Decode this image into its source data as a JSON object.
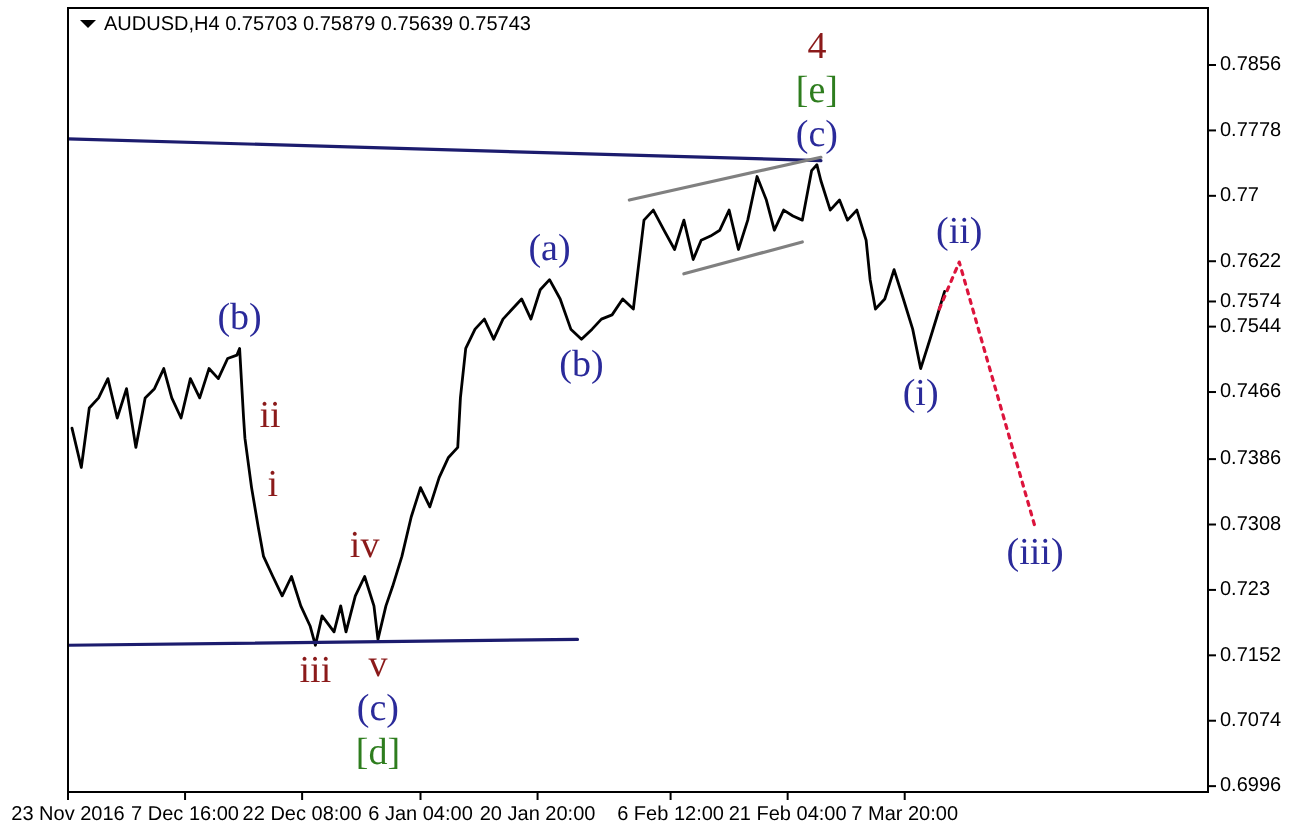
{
  "chart_data": {
    "type": "line",
    "title": "AUDUSD,H4  0.75703 0.75879 0.75639 0.75743",
    "xlim": [
      "2016-11-23T00:00",
      "2017-04-14T20:00"
    ],
    "xticks": [
      {
        "value": "2016-11-23T00:00",
        "label": "23 Nov 2016"
      },
      {
        "value": "2016-12-07T16:00",
        "label": "7 Dec 16:00"
      },
      {
        "value": "2016-12-22T08:00",
        "label": "22 Dec 08:00"
      },
      {
        "value": "2017-01-06T04:00",
        "label": "6 Jan 04:00"
      },
      {
        "value": "2017-01-20T20:00",
        "label": "20 Jan 20:00"
      },
      {
        "value": "2017-02-06T12:00",
        "label": "6 Feb 12:00"
      },
      {
        "value": "2017-02-21T04:00",
        "label": "21 Feb 04:00"
      },
      {
        "value": "2017-03-07T20:00",
        "label": "7 Mar 20:00"
      }
    ],
    "ylim": [
      0.6989,
      0.7924
    ],
    "yticks": [
      0.7856,
      0.7778,
      0.77,
      0.7622,
      0.7574,
      0.7544,
      0.7466,
      0.7386,
      0.7308,
      0.723,
      0.7152,
      0.7074,
      0.6996
    ],
    "grid": false,
    "marker": "none",
    "series": [
      {
        "color": "#000000",
        "line_style": "solid",
        "x": [
          "2016-11-23T12:00",
          "2016-11-24T16:00",
          "2016-11-25T16:00",
          "2016-11-26T20:00",
          "2016-11-28T00:00",
          "2016-11-29T04:00",
          "2016-11-30T08:00",
          "2016-12-01T12:00",
          "2016-12-02T16:00",
          "2016-12-03T20:00",
          "2016-12-05T00:00",
          "2016-12-06T00:00",
          "2016-12-07T04:00",
          "2016-12-08T08:00",
          "2016-12-09T12:00",
          "2016-12-10T16:00",
          "2016-12-11T20:00",
          "2016-12-13T00:00",
          "2016-12-14T04:00",
          "2016-12-14T12:00",
          "2016-12-15T00:00",
          "2016-12-15T04:00",
          "2016-12-16T00:00",
          "2016-12-16T20:00",
          "2016-12-17T12:00",
          "2016-12-18T16:00",
          "2016-12-19T20:00",
          "2016-12-21T00:00",
          "2016-12-22T04:00",
          "2016-12-23T08:00",
          "2016-12-24T00:00",
          "2016-12-24T20:00",
          "2016-12-26T08:00",
          "2016-12-27T04:00",
          "2016-12-27T20:00",
          "2016-12-29T00:00",
          "2016-12-30T04:00",
          "2016-12-31T08:00",
          "2016-12-31T20:00",
          "2017-01-01T20:00",
          "2017-01-02T16:00",
          "2017-01-03T20:00",
          "2017-01-05T00:00",
          "2017-01-06T04:00",
          "2017-01-07T08:00",
          "2017-01-08T12:00",
          "2017-01-09T16:00",
          "2017-01-10T20:00",
          "2017-01-11T04:00",
          "2017-01-11T20:00",
          "2017-01-13T00:00",
          "2017-01-14T04:00",
          "2017-01-15T08:00",
          "2017-01-16T12:00",
          "2017-01-17T16:00",
          "2017-01-18T20:00",
          "2017-01-20T00:00",
          "2017-01-21T04:00",
          "2017-01-22T08:00",
          "2017-01-23T16:00",
          "2017-01-25T00:00",
          "2017-01-26T08:00",
          "2017-01-27T16:00",
          "2017-01-28T20:00",
          "2017-01-30T04:00",
          "2017-01-31T12:00",
          "2017-02-01T20:00",
          "2017-02-03T04:00",
          "2017-02-04T08:00",
          "2017-02-05T16:00",
          "2017-02-07T00:00",
          "2017-02-08T04:00",
          "2017-02-09T08:00",
          "2017-02-10T08:00",
          "2017-02-11T12:00",
          "2017-02-12T16:00",
          "2017-02-13T20:00",
          "2017-02-15T00:00",
          "2017-02-16T04:00",
          "2017-02-17T08:00",
          "2017-02-18T12:00",
          "2017-02-19T12:00",
          "2017-02-20T16:00",
          "2017-02-21T20:00",
          "2017-02-23T00:00",
          "2017-02-24T04:00",
          "2017-02-24T20:00",
          "2017-02-25T08:00",
          "2017-02-26T12:00",
          "2017-02-27T16:00",
          "2017-02-28T16:00",
          "2017-03-01T20:00",
          "2017-03-03T00:00",
          "2017-03-03T12:00",
          "2017-03-04T04:00",
          "2017-03-05T08:00",
          "2017-03-06T12:00",
          "2017-03-07T16:00",
          "2017-03-08T20:00",
          "2017-03-09T20:00",
          "2017-03-11T00:00",
          "2017-03-12T04:00",
          "2017-03-12T20:00"
        ],
        "values": [
          0.7423,
          0.7376,
          0.7447,
          0.7459,
          0.7482,
          0.7435,
          0.747,
          0.74,
          0.7459,
          0.747,
          0.7494,
          0.7459,
          0.7435,
          0.7482,
          0.7459,
          0.7494,
          0.7482,
          0.7506,
          0.751,
          0.7518,
          0.7435,
          0.7411,
          0.7352,
          0.7305,
          0.727,
          0.7246,
          0.7223,
          0.7246,
          0.7211,
          0.7187,
          0.7164,
          0.7199,
          0.718,
          0.7211,
          0.718,
          0.7223,
          0.7246,
          0.7211,
          0.7171,
          0.7211,
          0.7234,
          0.727,
          0.7317,
          0.7352,
          0.7329,
          0.7364,
          0.7388,
          0.74,
          0.7459,
          0.7518,
          0.7541,
          0.7553,
          0.7529,
          0.7553,
          0.7565,
          0.7577,
          0.7553,
          0.7588,
          0.76,
          0.7577,
          0.7541,
          0.7529,
          0.7541,
          0.7553,
          0.7558,
          0.7577,
          0.7565,
          0.7671,
          0.7683,
          0.7659,
          0.7636,
          0.7671,
          0.7624,
          0.7647,
          0.7652,
          0.7659,
          0.7683,
          0.7636,
          0.7671,
          0.7723,
          0.7695,
          0.7659,
          0.7683,
          0.7676,
          0.7671,
          0.773,
          0.7737,
          0.7718,
          0.7683,
          0.7695,
          0.7671,
          0.7683,
          0.7647,
          0.76,
          0.7565,
          0.7577,
          0.7612,
          0.7577,
          0.7541,
          0.7494,
          0.7529,
          0.7565,
          0.7586
        ]
      },
      {
        "color": "#1c1c6e",
        "line_style": "solid",
        "x": [
          "2016-11-23T00:00",
          "2017-02-25T08:00"
        ],
        "values": [
          0.7768,
          0.7742
        ]
      },
      {
        "color": "#1c1c6e",
        "line_style": "solid",
        "x": [
          "2016-11-23T00:00",
          "2017-01-25T20:00"
        ],
        "values": [
          0.7164,
          0.7171
        ]
      },
      {
        "color": "#808080",
        "line_style": "solid",
        "x": [
          "2017-02-01T08:00",
          "2017-02-25T08:00"
        ],
        "values": [
          0.7695,
          0.7746
        ]
      },
      {
        "color": "#808080",
        "line_style": "solid",
        "x": [
          "2017-02-08T04:00",
          "2017-02-23T00:00"
        ],
        "values": [
          0.7607,
          0.7645
        ]
      },
      {
        "color": "#dc143c",
        "line_style": "dotted",
        "x": [
          "2017-03-12T04:00",
          "2017-03-14T16:00",
          "2017-03-24T04:00"
        ],
        "values": [
          0.7565,
          0.7621,
          0.7305
        ]
      }
    ],
    "annotations": [
      {
        "text": "4",
        "x": "2017-02-24T20:00",
        "y": 0.7737
      },
      {
        "text": "[e]",
        "x": "2017-02-24T20:00",
        "y": 0.7737
      },
      {
        "text": "(c)",
        "x": "2017-02-24T20:00",
        "y": 0.7737
      },
      {
        "text": "(a)",
        "x": "2017-01-22T08:00",
        "y": 0.76
      },
      {
        "text": "(b)",
        "x": "2017-01-26T08:00",
        "y": 0.7529
      },
      {
        "text": "(b)",
        "x": "2016-12-14T12:00",
        "y": 0.7518
      },
      {
        "text": "ii",
        "x": "2016-12-15T00:00",
        "y": 0.7435
      },
      {
        "text": "i",
        "x": "2016-12-16T00:00",
        "y": 0.7352
      },
      {
        "text": "iii",
        "x": "2016-12-24T00:00",
        "y": 0.7164
      },
      {
        "text": "iv",
        "x": "2016-12-30T04:00",
        "y": 0.7246
      },
      {
        "text": "v",
        "x": "2016-12-31T20:00",
        "y": 0.7171
      },
      {
        "text": "(c)",
        "x": "2016-12-31T20:00",
        "y": 0.7171
      },
      {
        "text": "[d]",
        "x": "2016-12-31T20:00",
        "y": 0.7171
      },
      {
        "text": "(i)",
        "x": "2017-03-09T20:00",
        "y": 0.7494
      },
      {
        "text": "(ii)",
        "x": "2017-03-14T16:00",
        "y": 0.7621
      },
      {
        "text": "(iii)",
        "x": "2017-03-24T04:00",
        "y": 0.7305
      }
    ]
  }
}
